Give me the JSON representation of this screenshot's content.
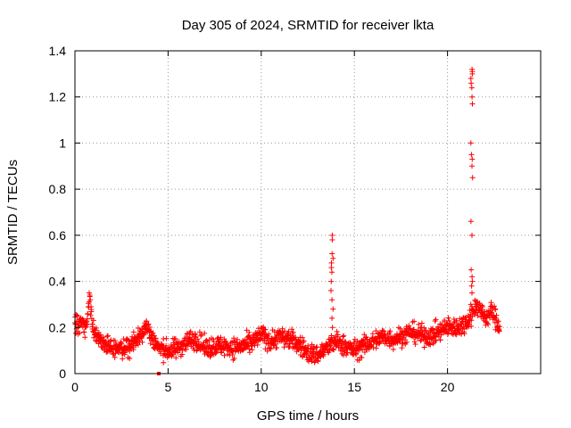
{
  "chart_data": {
    "type": "scatter",
    "title": "Day 305 of 2024, SRMTID for receiver lkta",
    "xlabel": "GPS time / hours",
    "ylabel": "SRMTID / TECUs",
    "xlim": [
      0,
      25
    ],
    "ylim": [
      0,
      1.4
    ],
    "xticks": [
      0,
      5,
      10,
      15,
      20
    ],
    "xtick_labels": [
      "0",
      "5",
      "10",
      "15",
      "20"
    ],
    "yticks": [
      0,
      0.2,
      0.4,
      0.6,
      0.8,
      1.0,
      1.2,
      1.4
    ],
    "ytick_labels": [
      "0",
      "0.2",
      "0.4",
      "0.6",
      "0.8",
      "1",
      "1.2",
      "1.4"
    ],
    "grid": true,
    "marker": "plus",
    "marker_color": "#ff0000",
    "baseline_profile": {
      "x": [
        0,
        0.3,
        0.6,
        0.8,
        1.0,
        1.5,
        2.0,
        2.5,
        3.0,
        3.5,
        3.8,
        4.2,
        4.5,
        5.0,
        5.5,
        6.0,
        6.5,
        7.0,
        7.5,
        8.0,
        8.5,
        9.0,
        9.5,
        10.0,
        10.5,
        11.0,
        11.5,
        12.0,
        12.5,
        13.0,
        13.5,
        14.0,
        14.5,
        15.0,
        15.5,
        16.0,
        16.5,
        17.0,
        17.5,
        18.0,
        18.5,
        19.0,
        19.5,
        20.0,
        20.5,
        21.0,
        21.3,
        21.6,
        22.0,
        22.4,
        22.8
      ],
      "y": [
        0.21,
        0.22,
        0.2,
        0.33,
        0.18,
        0.13,
        0.11,
        0.1,
        0.13,
        0.16,
        0.21,
        0.15,
        0.11,
        0.1,
        0.11,
        0.14,
        0.15,
        0.11,
        0.12,
        0.12,
        0.11,
        0.12,
        0.13,
        0.17,
        0.14,
        0.16,
        0.15,
        0.13,
        0.09,
        0.08,
        0.11,
        0.14,
        0.12,
        0.1,
        0.12,
        0.14,
        0.16,
        0.15,
        0.16,
        0.18,
        0.17,
        0.16,
        0.18,
        0.2,
        0.2,
        0.22,
        0.26,
        0.3,
        0.24,
        0.27,
        0.2
      ],
      "noise": 0.045,
      "count": 1500
    },
    "spikes": [
      {
        "x": 13.8,
        "values": [
          0.6,
          0.58,
          0.52,
          0.5,
          0.48,
          0.46,
          0.44,
          0.4,
          0.36,
          0.32,
          0.28,
          0.24,
          0.2
        ]
      },
      {
        "x": 21.3,
        "values": [
          1.32,
          1.31,
          1.3,
          1.28,
          1.26,
          1.24,
          1.2,
          1.17,
          1.0,
          0.95,
          0.93,
          0.9,
          0.85,
          0.66,
          0.6,
          0.45,
          0.42,
          0.4,
          0.38,
          0.35,
          0.3
        ]
      }
    ],
    "outliers": [
      {
        "x": 4.5,
        "y": 0.0
      }
    ]
  }
}
